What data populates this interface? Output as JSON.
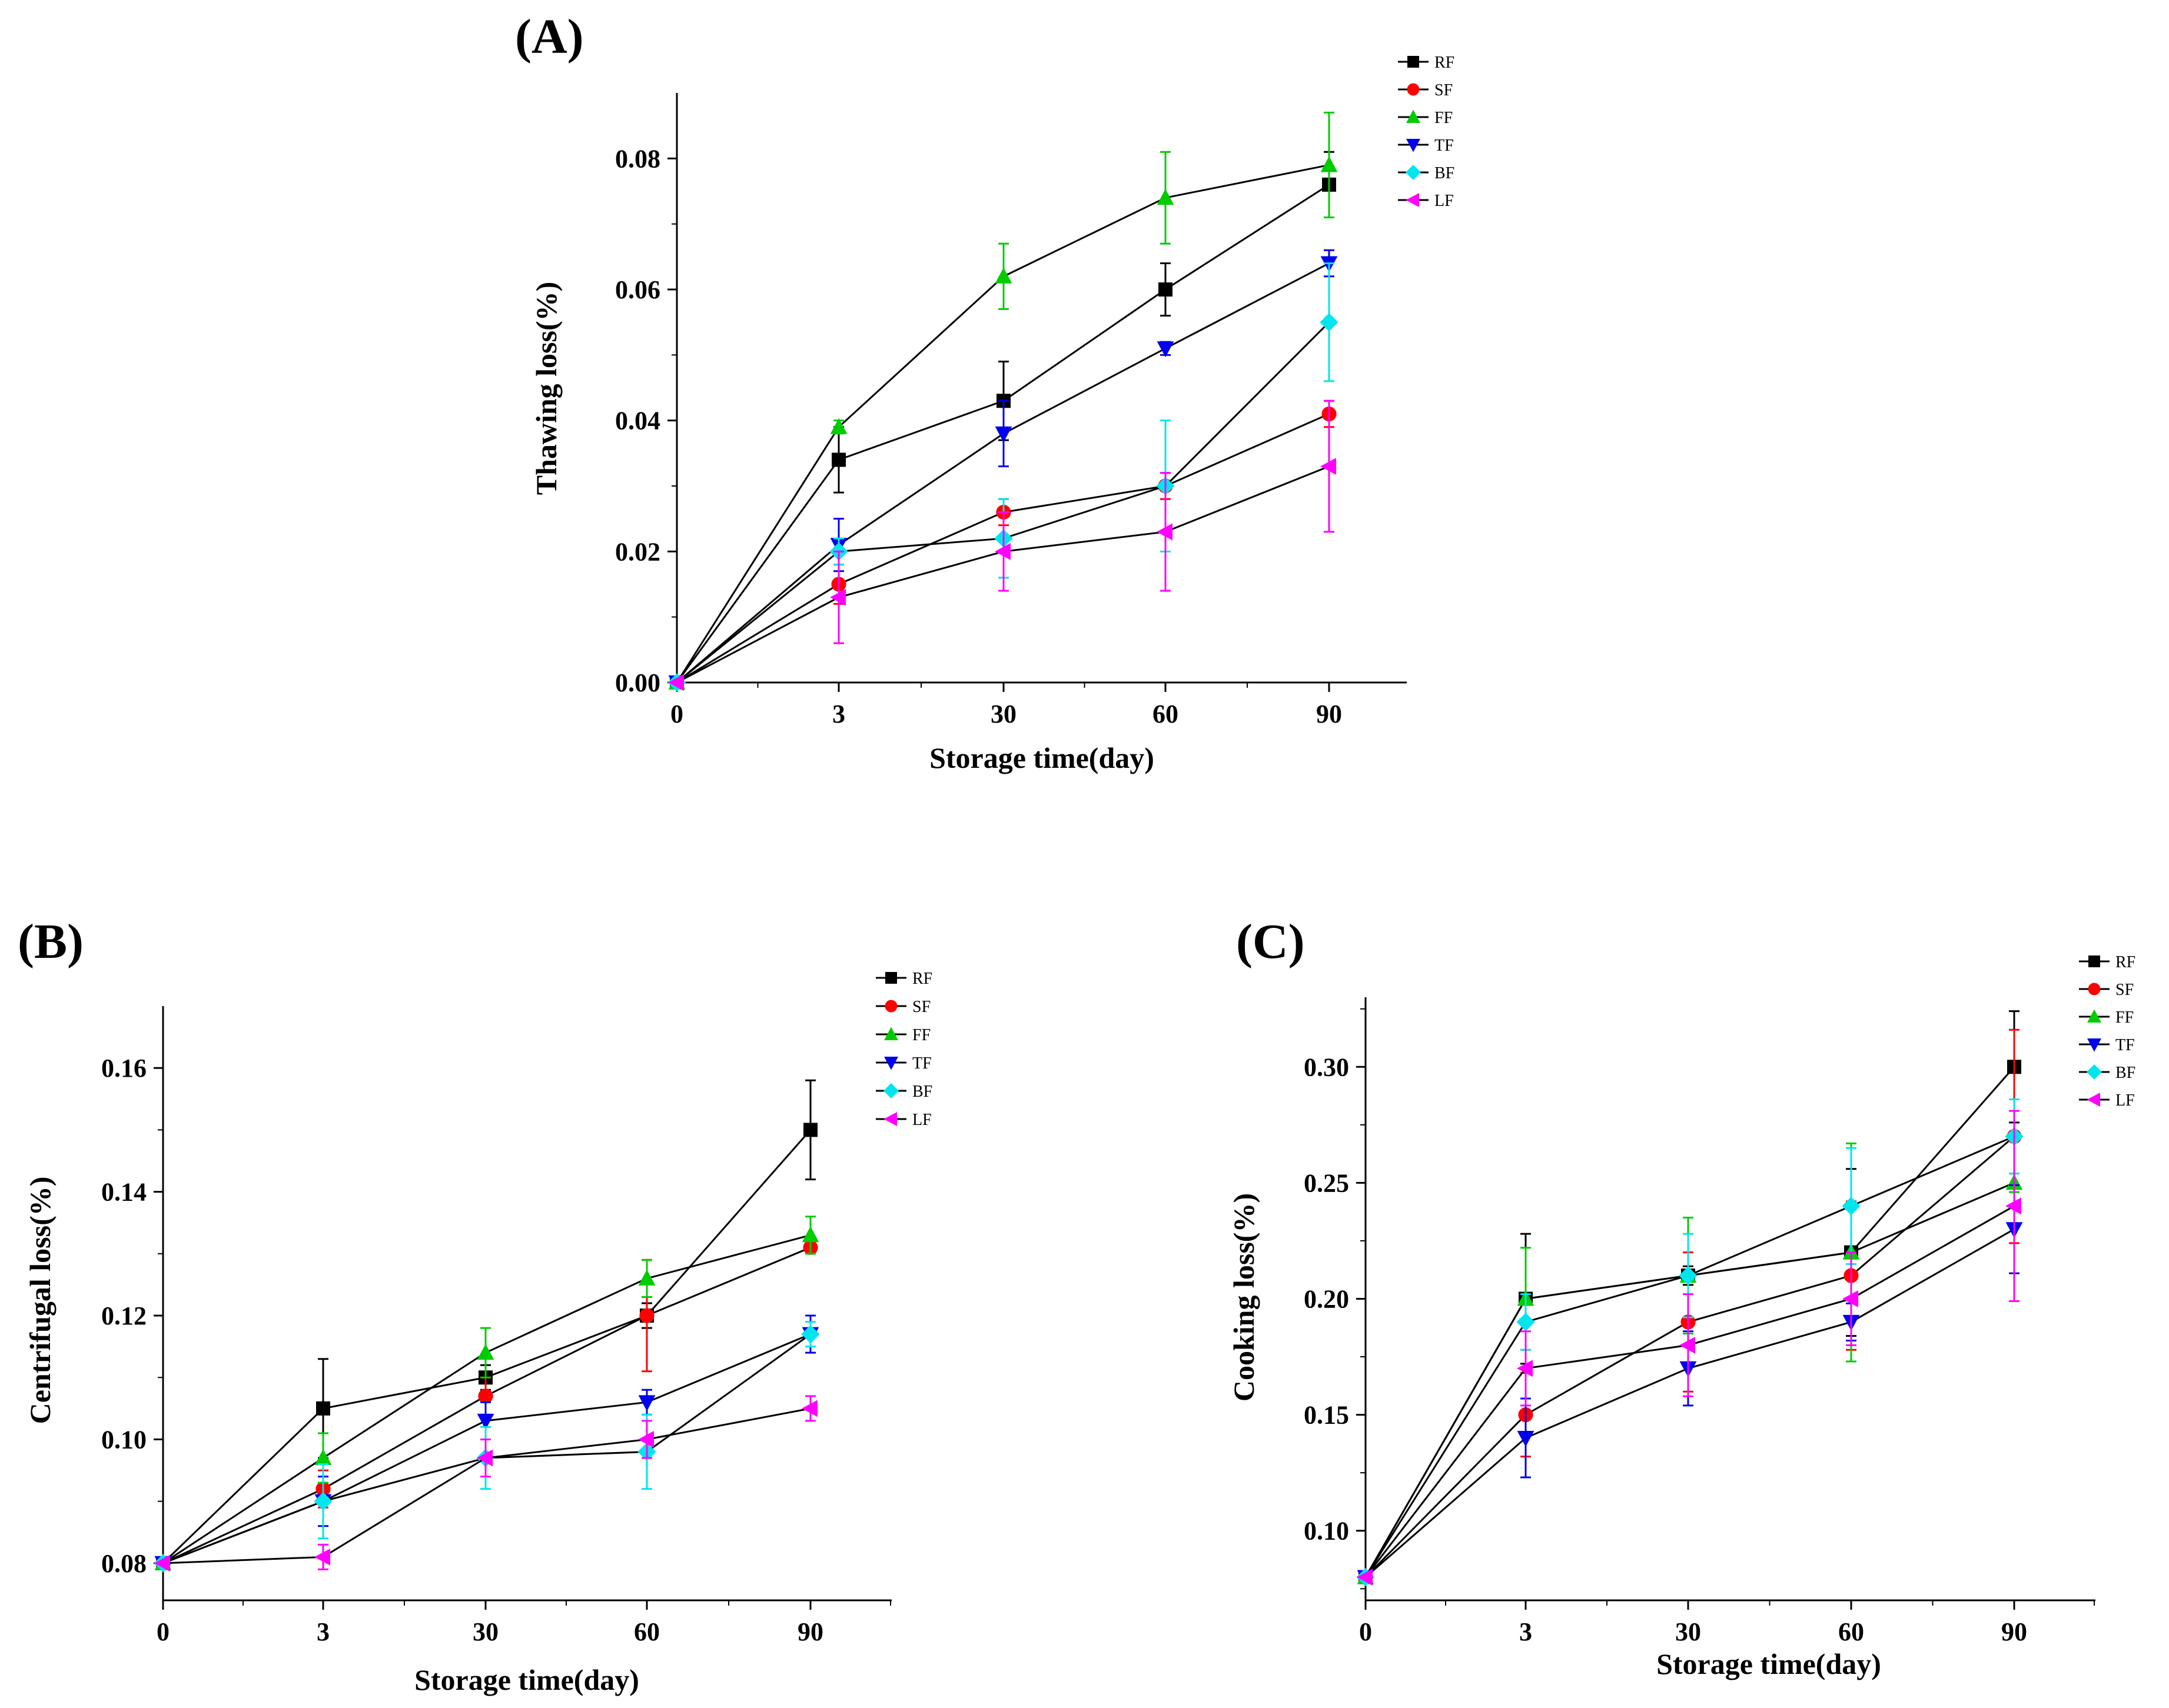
{
  "figure": {
    "colors": {
      "RF": "#000000",
      "SF": "#ff0000",
      "FF": "#00cc00",
      "TF": "#0000ee",
      "BF": "#00e5ee",
      "LF": "#ff00ff"
    }
  },
  "chart_data": [
    {
      "id": "A",
      "type": "line",
      "panel_label": "(A)",
      "xlabel": "Storage time(day)",
      "ylabel": "Thawing loss(%)",
      "categories": [
        "0",
        "3",
        "30",
        "60",
        "90"
      ],
      "ylim": [
        0,
        0.09
      ],
      "yticks": [
        0.0,
        0.02,
        0.04,
        0.06,
        0.08
      ],
      "ytick_labels": [
        "0.00",
        "0.02",
        "0.04",
        "0.06",
        "0.08"
      ],
      "legend_position": "top-right",
      "series": [
        {
          "name": "RF",
          "marker": "square",
          "values": [
            0,
            0.034,
            0.043,
            0.06,
            0.076
          ],
          "errors": [
            0,
            0.005,
            0.006,
            0.004,
            0.005
          ]
        },
        {
          "name": "SF",
          "marker": "circle",
          "values": [
            0,
            0.015,
            0.026,
            0.03,
            0.041
          ],
          "errors": [
            0,
            0.003,
            0.002,
            0.002,
            0.002
          ]
        },
        {
          "name": "FF",
          "marker": "triangle-up",
          "values": [
            0,
            0.039,
            0.062,
            0.074,
            0.079
          ],
          "errors": [
            0,
            0.001,
            0.005,
            0.007,
            0.008
          ]
        },
        {
          "name": "TF",
          "marker": "triangle-down",
          "values": [
            0,
            0.021,
            0.038,
            0.051,
            0.064
          ],
          "errors": [
            0,
            0.004,
            0.005,
            0.001,
            0.002
          ]
        },
        {
          "name": "BF",
          "marker": "diamond",
          "values": [
            0,
            0.02,
            0.022,
            0.03,
            0.055
          ],
          "errors": [
            0,
            0.002,
            0.006,
            0.01,
            0.009
          ]
        },
        {
          "name": "LF",
          "marker": "triangle-left",
          "values": [
            0,
            0.013,
            0.02,
            0.023,
            0.033
          ],
          "errors": [
            0,
            0.007,
            0.006,
            0.009,
            0.01
          ]
        }
      ]
    },
    {
      "id": "B",
      "type": "line",
      "panel_label": "(B)",
      "xlabel": "Storage time(day)",
      "ylabel": "Centrifugal loss(%)",
      "categories": [
        "0",
        "3",
        "30",
        "60",
        "90"
      ],
      "ylim": [
        0.074,
        0.17
      ],
      "yticks": [
        0.08,
        0.1,
        0.12,
        0.14,
        0.16
      ],
      "ytick_labels": [
        "0.08",
        "0.10",
        "0.12",
        "0.14",
        "0.16"
      ],
      "legend_position": "top-right",
      "series": [
        {
          "name": "RF",
          "marker": "square",
          "values": [
            0.08,
            0.105,
            0.11,
            0.12,
            0.15
          ],
          "errors": [
            0,
            0.008,
            0.002,
            0.002,
            0.008
          ]
        },
        {
          "name": "SF",
          "marker": "circle",
          "values": [
            0.08,
            0.092,
            0.107,
            0.12,
            0.131
          ],
          "errors": [
            0,
            0.003,
            0.003,
            0.009,
            0.001
          ]
        },
        {
          "name": "FF",
          "marker": "triangle-up",
          "values": [
            0.08,
            0.097,
            0.114,
            0.126,
            0.133
          ],
          "errors": [
            0,
            0.004,
            0.004,
            0.003,
            0.003
          ]
        },
        {
          "name": "TF",
          "marker": "triangle-down",
          "values": [
            0.08,
            0.09,
            0.103,
            0.106,
            0.117
          ],
          "errors": [
            0,
            0.004,
            0.003,
            0.002,
            0.003
          ]
        },
        {
          "name": "BF",
          "marker": "diamond",
          "values": [
            0.08,
            0.09,
            0.097,
            0.098,
            0.117
          ],
          "errors": [
            0,
            0.006,
            0.005,
            0.006,
            0.002
          ]
        },
        {
          "name": "LF",
          "marker": "triangle-left",
          "values": [
            0.08,
            0.081,
            0.097,
            0.1,
            0.105
          ],
          "errors": [
            0,
            0.002,
            0.003,
            0.003,
            0.002
          ]
        }
      ]
    },
    {
      "id": "C",
      "type": "line",
      "panel_label": "(C)",
      "xlabel": "Storage time(day)",
      "ylabel": "Cooking loss(%)",
      "categories": [
        "0",
        "3",
        "30",
        "60",
        "90"
      ],
      "ylim": [
        0.07,
        0.33
      ],
      "yticks": [
        0.1,
        0.15,
        0.2,
        0.25,
        0.3
      ],
      "ytick_labels": [
        "0.10",
        "0.15",
        "0.20",
        "0.25",
        "0.30"
      ],
      "legend_position": "top-right",
      "series": [
        {
          "name": "RF",
          "marker": "square",
          "values": [
            0.08,
            0.2,
            0.21,
            0.22,
            0.3
          ],
          "errors": [
            0,
            0.028,
            0.004,
            0.036,
            0.024
          ]
        },
        {
          "name": "SF",
          "marker": "circle",
          "values": [
            0.08,
            0.15,
            0.19,
            0.21,
            0.27
          ],
          "errors": [
            0,
            0.018,
            0.03,
            0.032,
            0.046
          ]
        },
        {
          "name": "FF",
          "marker": "triangle-up",
          "values": [
            0.08,
            0.2,
            0.21,
            0.22,
            0.25
          ],
          "errors": [
            0,
            0.022,
            0.025,
            0.047,
            0.004
          ]
        },
        {
          "name": "TF",
          "marker": "triangle-down",
          "values": [
            0.08,
            0.14,
            0.17,
            0.19,
            0.23
          ],
          "errors": [
            0,
            0.017,
            0.016,
            0.008,
            0.019
          ]
        },
        {
          "name": "BF",
          "marker": "diamond",
          "values": [
            0.08,
            0.19,
            0.21,
            0.24,
            0.27
          ],
          "errors": [
            0,
            0.012,
            0.018,
            0.025,
            0.016
          ]
        },
        {
          "name": "LF",
          "marker": "triangle-left",
          "values": [
            0.08,
            0.17,
            0.18,
            0.2,
            0.24
          ],
          "errors": [
            0,
            0.016,
            0.022,
            0.02,
            0.041
          ]
        }
      ]
    }
  ]
}
